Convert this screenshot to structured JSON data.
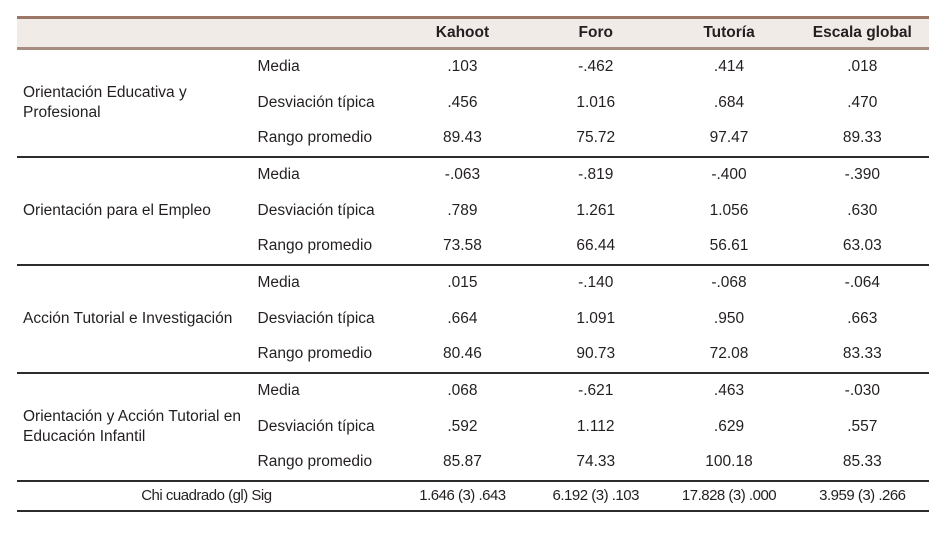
{
  "colors": {
    "header_background": "#f1ebe7",
    "header_top_border": "#9c7768",
    "header_bottom_border": "#a78d80",
    "group_divider": "#2d2d2d",
    "text": "#231f20"
  },
  "table": {
    "header": {
      "columns": [
        "Kahoot",
        "Foro",
        "Tutoría",
        "Escala global"
      ]
    },
    "groups": [
      {
        "label": "Orientación Educativa y Profesional",
        "rows": [
          {
            "label": "Media",
            "values": [
              ".103",
              "-.462",
              ".414",
              ".018"
            ]
          },
          {
            "label": "Desviación típica",
            "values": [
              ".456",
              "1.016",
              ".684",
              ".470"
            ]
          },
          {
            "label": "Rango promedio",
            "values": [
              "89.43",
              "75.72",
              "97.47",
              "89.33"
            ]
          }
        ]
      },
      {
        "label": "Orientación para el Empleo",
        "rows": [
          {
            "label": "Media",
            "values": [
              "-.063",
              "-.819",
              "-.400",
              "-.390"
            ]
          },
          {
            "label": "Desviación típica",
            "values": [
              ".789",
              "1.261",
              "1.056",
              ".630"
            ]
          },
          {
            "label": "Rango promedio",
            "values": [
              "73.58",
              "66.44",
              "56.61",
              "63.03"
            ]
          }
        ]
      },
      {
        "label": "Acción Tutorial e Investigación",
        "rows": [
          {
            "label": "Media",
            "values": [
              ".015",
              "-.140",
              "-.068",
              "-.064"
            ]
          },
          {
            "label": "Desviación típica",
            "values": [
              ".664",
              "1.091",
              ".950",
              ".663"
            ]
          },
          {
            "label": "Rango promedio",
            "values": [
              "80.46",
              "90.73",
              "72.08",
              "83.33"
            ]
          }
        ]
      },
      {
        "label": "Orientación y Acción Tutorial en Educación Infantil",
        "rows": [
          {
            "label": "Media",
            "values": [
              ".068",
              "-.621",
              ".463",
              "-.030"
            ]
          },
          {
            "label": "Desviación típica",
            "values": [
              ".592",
              "1.112",
              ".629",
              ".557"
            ]
          },
          {
            "label": "Rango promedio",
            "values": [
              "85.87",
              "74.33",
              "100.18",
              "85.33"
            ]
          }
        ]
      }
    ],
    "footer": {
      "label": "Chi cuadrado (gl) Sig",
      "values": [
        "1.646 (3) .643",
        "6.192 (3) .103",
        "17.828 (3) .000",
        "3.959 (3) .266"
      ]
    }
  }
}
